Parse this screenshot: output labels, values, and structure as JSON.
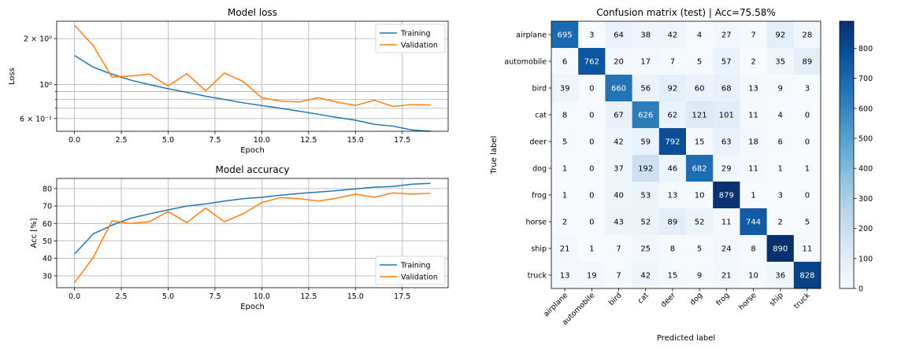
{
  "chart_data": [
    {
      "type": "line",
      "title": "Model loss",
      "xlabel": "Epoch",
      "ylabel": "Loss",
      "yscale": "log",
      "xlim": [
        -0.95,
        19.95
      ],
      "ylim": [
        0.495,
        2.6
      ],
      "xticks": [
        0,
        2.5,
        5,
        7.5,
        10,
        12.5,
        15,
        17.5
      ],
      "xtick_labels": [
        "0.0",
        "2.5",
        "5.0",
        "7.5",
        "10.0",
        "12.5",
        "15.0",
        "17.5"
      ],
      "yticks_major": [
        0.6,
        1.0,
        2.0
      ],
      "ytick_labels": [
        "6 × 10⁻¹",
        "10⁰",
        "2 × 10⁰"
      ],
      "yticks_minor": [
        0.7,
        0.8,
        0.9
      ],
      "grid": true,
      "legend_position": "top-right",
      "x": [
        0,
        1,
        2,
        3,
        4,
        5,
        6,
        7,
        8,
        9,
        10,
        11,
        12,
        13,
        14,
        15,
        16,
        17,
        18,
        19
      ],
      "series": [
        {
          "name": "Training",
          "color": "#1f77b4",
          "values": [
            1.55,
            1.3,
            1.17,
            1.07,
            1.0,
            0.94,
            0.89,
            0.84,
            0.8,
            0.76,
            0.73,
            0.7,
            0.67,
            0.64,
            0.61,
            0.585,
            0.55,
            0.535,
            0.505,
            0.495
          ]
        },
        {
          "name": "Validation",
          "color": "#ff7f0e",
          "values": [
            2.45,
            1.8,
            1.12,
            1.14,
            1.17,
            0.98,
            1.18,
            0.91,
            1.19,
            1.05,
            0.82,
            0.78,
            0.77,
            0.82,
            0.77,
            0.73,
            0.79,
            0.72,
            0.74,
            0.735
          ]
        }
      ]
    },
    {
      "type": "line",
      "title": "Model accuracy",
      "xlabel": "Epoch",
      "ylabel": "Acc [%]",
      "xlim": [
        -0.95,
        19.95
      ],
      "ylim": [
        23.2,
        85.8
      ],
      "xticks": [
        0,
        2.5,
        5,
        7.5,
        10,
        12.5,
        15,
        17.5
      ],
      "xtick_labels": [
        "0.0",
        "2.5",
        "5.0",
        "7.5",
        "10.0",
        "12.5",
        "15.0",
        "17.5"
      ],
      "yticks": [
        30,
        40,
        50,
        60,
        70,
        80
      ],
      "ytick_labels": [
        "30",
        "40",
        "50",
        "60",
        "70",
        "80"
      ],
      "grid": true,
      "legend_position": "bottom-right",
      "x": [
        0,
        1,
        2,
        3,
        4,
        5,
        6,
        7,
        8,
        9,
        10,
        11,
        12,
        13,
        14,
        15,
        16,
        17,
        18,
        19
      ],
      "series": [
        {
          "name": "Training",
          "color": "#1f77b4",
          "values": [
            42.5,
            54,
            59,
            63,
            65.5,
            67.8,
            70,
            71.2,
            72.8,
            74.2,
            75,
            76.2,
            77.2,
            78,
            78.8,
            79.8,
            80.8,
            81.2,
            82.5,
            83
          ]
        },
        {
          "name": "Validation",
          "color": "#ff7f0e",
          "values": [
            26,
            40.5,
            61.5,
            60,
            61,
            66.8,
            60.5,
            68.8,
            61,
            65.5,
            72,
            74.8,
            74.2,
            72.8,
            74.5,
            76.8,
            75,
            77.5,
            76.8,
            77.3
          ]
        }
      ]
    },
    {
      "type": "heatmap",
      "title": "Confusion matrix (test) | Acc=75.58%",
      "xlabel": "Predicted label",
      "ylabel": "True label",
      "colormap": "Blues",
      "vmin": 0,
      "vmax": 890,
      "colorbar_ticks": [
        0,
        100,
        200,
        300,
        400,
        500,
        600,
        700,
        800
      ],
      "colorbar_tick_labels": [
        "0",
        "100",
        "200",
        "300",
        "400",
        "500",
        "600",
        "700",
        "800"
      ],
      "labels": [
        "airplane",
        "automobile",
        "bird",
        "cat",
        "deer",
        "dog",
        "frog",
        "horse",
        "ship",
        "truck"
      ],
      "matrix": [
        [
          695,
          3,
          64,
          38,
          42,
          4,
          27,
          7,
          92,
          28
        ],
        [
          6,
          762,
          20,
          17,
          7,
          5,
          57,
          2,
          35,
          89
        ],
        [
          39,
          0,
          660,
          56,
          92,
          60,
          68,
          13,
          9,
          3
        ],
        [
          8,
          0,
          67,
          626,
          62,
          121,
          101,
          11,
          4,
          0
        ],
        [
          5,
          0,
          42,
          59,
          792,
          15,
          63,
          18,
          6,
          0
        ],
        [
          1,
          0,
          37,
          192,
          46,
          682,
          29,
          11,
          1,
          1
        ],
        [
          1,
          0,
          40,
          53,
          13,
          10,
          879,
          1,
          3,
          0
        ],
        [
          2,
          0,
          43,
          52,
          89,
          52,
          11,
          744,
          2,
          5
        ],
        [
          21,
          1,
          7,
          25,
          8,
          5,
          24,
          8,
          890,
          11
        ],
        [
          13,
          19,
          7,
          42,
          15,
          9,
          21,
          10,
          36,
          828
        ]
      ]
    }
  ]
}
